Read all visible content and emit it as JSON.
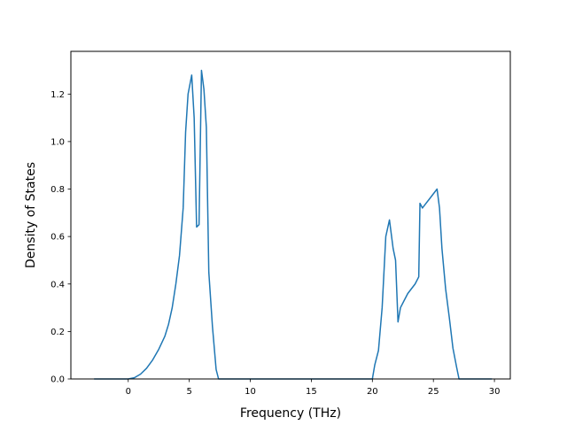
{
  "chart_data": {
    "type": "line",
    "title": "",
    "xlabel": "Frequency (THz)",
    "ylabel": "Density of States",
    "xlim": [
      -4.7,
      31.3
    ],
    "ylim": [
      0,
      1.38
    ],
    "xticks": [
      0,
      5,
      10,
      15,
      20,
      25,
      30
    ],
    "xtick_labels": [
      "0",
      "5",
      "10",
      "15",
      "20",
      "25",
      "30"
    ],
    "yticks": [
      0.0,
      0.2,
      0.4,
      0.6,
      0.8,
      1.0,
      1.2
    ],
    "ytick_labels": [
      "0.0",
      "0.2",
      "0.4",
      "0.6",
      "0.8",
      "1.0",
      "1.2"
    ],
    "grid": false,
    "line_color": "#1f77b4",
    "series": [
      {
        "x": [
          -2.8,
          0.0,
          0.5,
          1.0,
          1.5,
          2.0,
          2.5,
          3.0,
          3.3,
          3.6,
          3.9,
          4.2,
          4.5,
          4.7,
          4.9,
          5.2,
          5.4,
          5.6,
          5.8,
          6.0,
          6.2,
          6.4,
          6.6,
          6.9,
          7.2,
          7.4,
          8.0,
          10,
          15,
          20.0,
          20.2,
          20.5,
          20.8,
          21.1,
          21.4,
          21.7,
          21.9,
          22.1,
          22.3,
          22.6,
          22.9,
          23.2,
          23.5,
          23.8,
          23.9,
          24.1,
          24.4,
          24.7,
          25.0,
          25.3,
          25.5,
          25.7,
          26.0,
          26.3,
          26.6,
          26.9,
          27.1,
          27.3,
          28.0,
          29.8
        ],
        "values": [
          0.0,
          0.0,
          0.005,
          0.02,
          0.045,
          0.08,
          0.125,
          0.18,
          0.23,
          0.3,
          0.4,
          0.52,
          0.72,
          1.04,
          1.2,
          1.28,
          1.1,
          0.64,
          0.65,
          1.3,
          1.22,
          1.06,
          0.45,
          0.22,
          0.04,
          0.0,
          0.0,
          0.0,
          0.0,
          0.0,
          0.06,
          0.12,
          0.3,
          0.6,
          0.67,
          0.55,
          0.5,
          0.24,
          0.3,
          0.33,
          0.36,
          0.38,
          0.4,
          0.43,
          0.74,
          0.72,
          0.74,
          0.76,
          0.78,
          0.8,
          0.72,
          0.55,
          0.38,
          0.26,
          0.13,
          0.05,
          0.0,
          0.0,
          0.0,
          0.0
        ]
      }
    ]
  }
}
